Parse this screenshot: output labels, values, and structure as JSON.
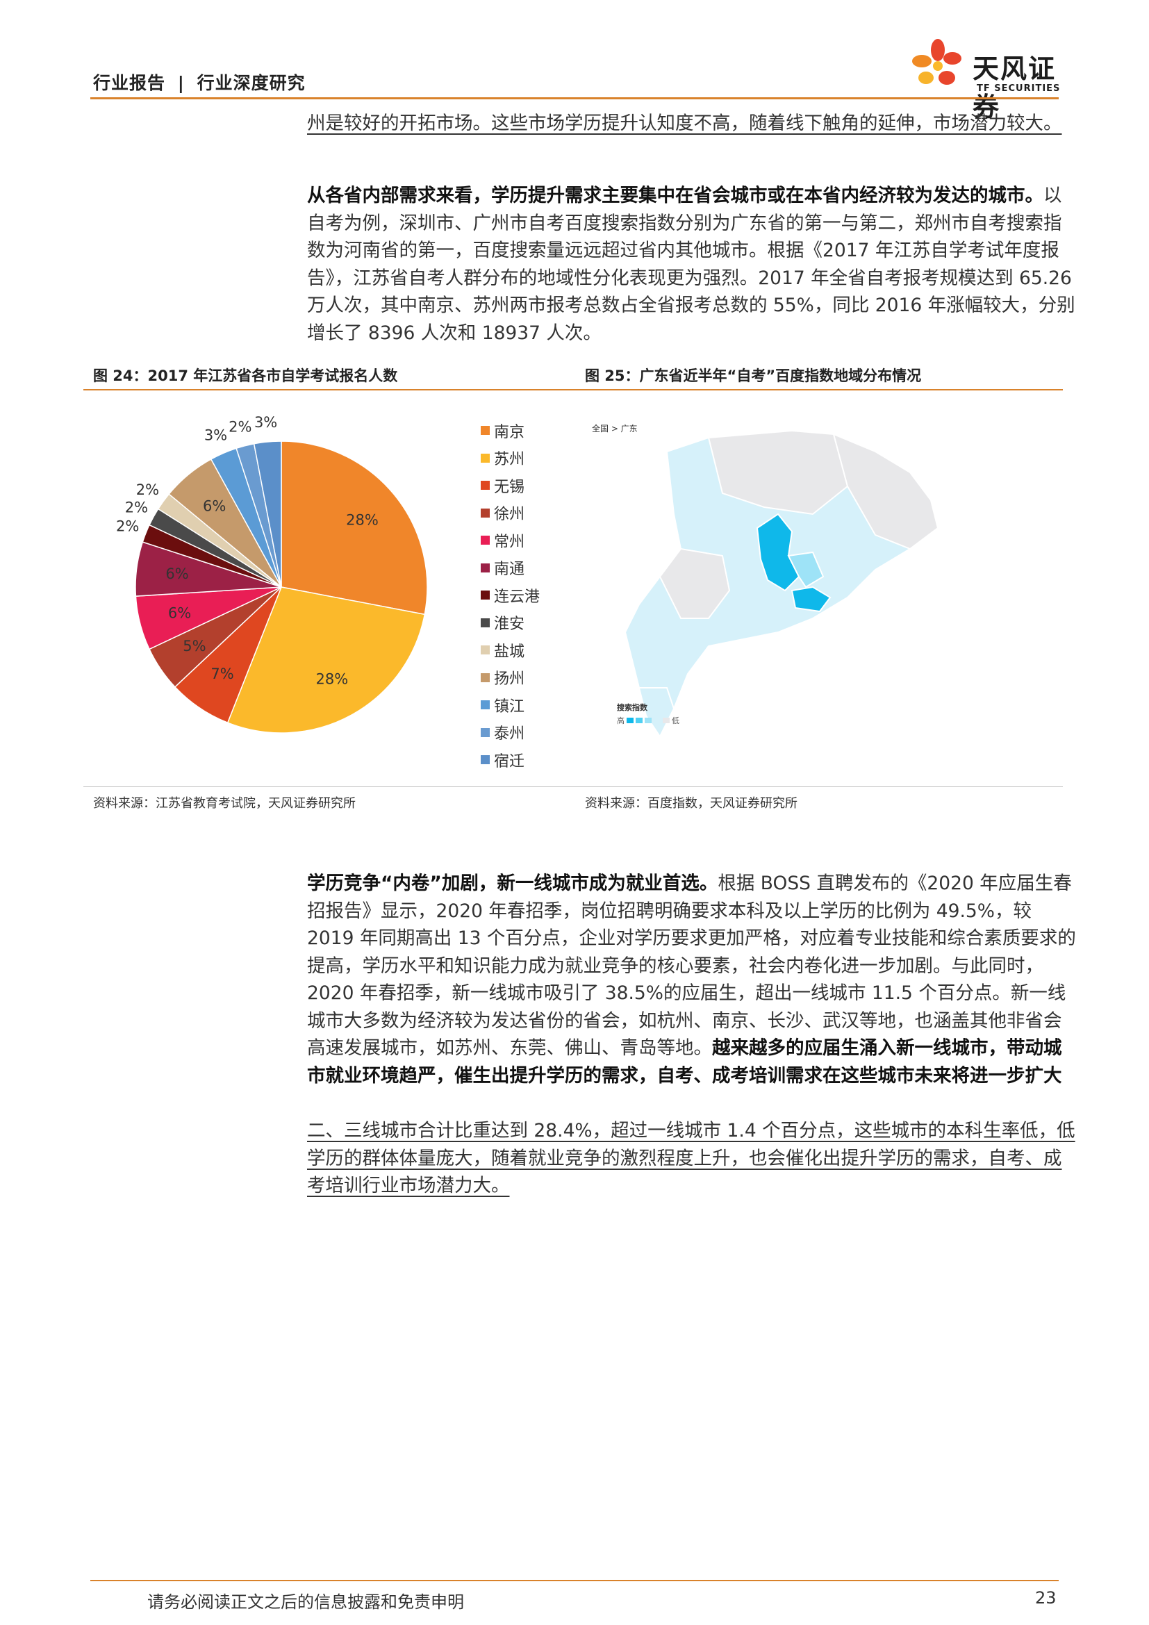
{
  "header": {
    "category": "行业报告",
    "separator": "|",
    "subcategory": "行业深度研究",
    "logo_cn": "天风证券",
    "logo_en": "TF SECURITIES",
    "accent_color": "#d9822b"
  },
  "paragraphs": {
    "p1": "州是较好的开拓市场。这些市场学历提升认知度不高，随着线下触角的延伸，市场潜力较大。",
    "p2_bold": "从各省内部需求来看，学历提升需求主要集中在省会城市或在本省内经济较为发达的城市。",
    "p2_rest": "以自考为例，深圳市、广州市自考百度搜索指数分别为广东省的第一与第二，郑州市自考搜索指数为河南省的第一，百度搜索量远远超过省内其他城市。根据《2017 年江苏自学考试年度报告》，江苏省自考人群分布的地域性分化表现更为强烈。2017 年全省自考报考规模达到 65.26 万人次，其中南京、苏州两市报考总数占全省报考总数的 55%，同比 2016 年涨幅较大，分别增长了 8396 人次和 18937 人次。",
    "p3_bold": "学历竞争“内卷”加剧，新一线城市成为就业首选。",
    "p3_rest": "根据 BOSS 直聘发布的《2020 年应届生春招报告》显示，2020 年春招季，岗位招聘明确要求本科及以上学历的比例为 49.5%，较 2019 年同期高出 13 个百分点，企业对学历要求更加严格，对应着专业技能和综合素质要求的提高，学历水平和知识能力成为就业竞争的核心要素，社会内卷化进一步加剧。与此同时，2020 年春招季，新一线城市吸引了 38.5%的应届生，超出一线城市 11.5 个百分点。新一线城市大多数为经济较为发达省份的省会，如杭州、南京、长沙、武汉等地，也涵盖其他非省会高速发展城市，如苏州、东莞、佛山、青岛等地。",
    "p3_bold2": "越来越多的应届生涌入新一线城市，带动城市就业环境趋严，催生出提升学历的需求，自考、成考培训需求在这些城市未来将进一步扩大",
    "p4": "二、三线城市合计比重达到 28.4%，超过一线城市 1.4 个百分点，这些城市的本科生率低，低学历的群体体量庞大，随着就业竞争的激烈程度上升，也会催化出提升学历的需求，自考、成考培训行业市场潜力大。"
  },
  "figure24": {
    "title": "图 24：2017 年江苏省各市自学考试报名人数",
    "source": "资料来源：江苏省教育考试院，天风证券研究所"
  },
  "figure25": {
    "title": "图 25：广东省近半年“自考”百度指数地域分布情况",
    "source": "资料来源：百度指数，天风证券研究所",
    "breadcrumb": "全国 > 广东",
    "legend_title": "搜索指数",
    "legend_high": "高",
    "legend_low": "低",
    "colors": [
      "#0fb8ea",
      "#4fd0f2",
      "#9ee3f7",
      "#d6f1fa",
      "#e8e8ea"
    ]
  },
  "chart_data": {
    "type": "pie",
    "categories": [
      "南京",
      "苏州",
      "无锡",
      "徐州",
      "常州",
      "南通",
      "连云港",
      "淮安",
      "盐城",
      "扬州",
      "镇江",
      "泰州",
      "宿迁"
    ],
    "values": [
      28,
      28,
      7,
      5,
      6,
      6,
      2,
      2,
      2,
      6,
      3,
      2,
      3
    ],
    "labels": [
      "28%",
      "28%",
      "7%",
      "5%",
      "6%",
      "6%",
      "2%",
      "2%",
      "2%",
      "6%",
      "3%",
      "2%",
      "3%"
    ],
    "colors": [
      "#f0862a",
      "#fbb92b",
      "#df4720",
      "#b3402d",
      "#e91e55",
      "#9c2146",
      "#6b0e0e",
      "#4a4a4a",
      "#e0cfb0",
      "#c59a6b",
      "#5b9bd5",
      "#6a9bd0",
      "#5b8fc9"
    ],
    "legend_position": "right"
  },
  "footer": {
    "disclaimer": "请务必阅读正文之后的信息披露和免责申明",
    "page": "23"
  }
}
